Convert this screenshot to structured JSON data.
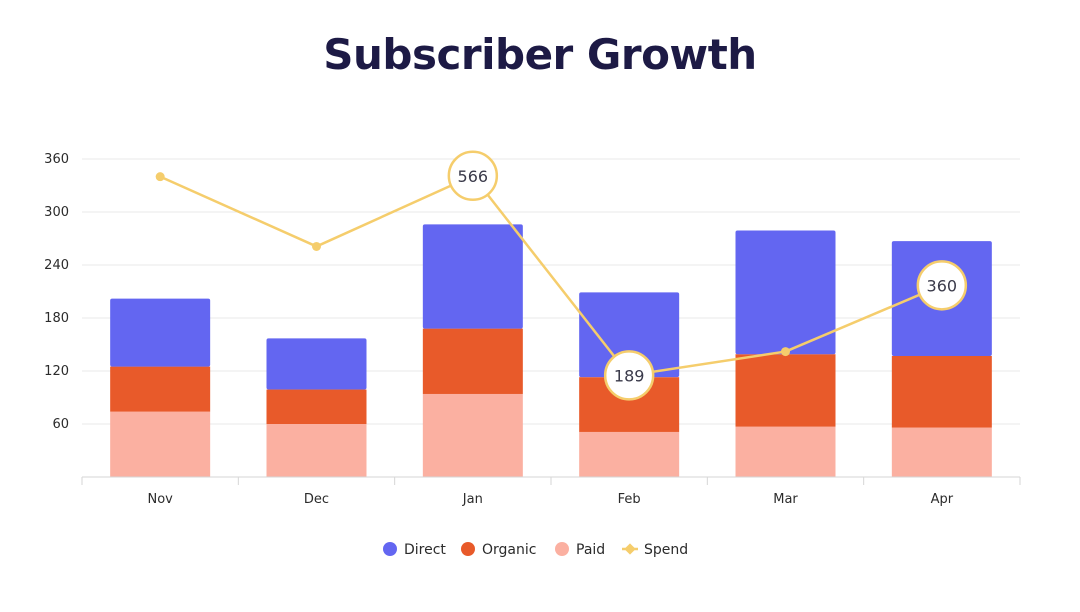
{
  "colors": {
    "title": "#1d1a45",
    "direct": "#6366f1",
    "organic": "#e85a2a",
    "paid": "#fbb0a1",
    "spend": "#f5cd6c",
    "grid": "#e8e8e8",
    "axis": "#d6d6d6"
  },
  "chart_data": {
    "type": "bar",
    "stacked": true,
    "title": "Subscriber Growth",
    "categories": [
      "Nov",
      "Dec",
      "Jan",
      "Feb",
      "Mar",
      "Apr"
    ],
    "ylim": [
      0,
      360
    ],
    "yticks": [
      "60",
      "120",
      "180",
      "240",
      "300",
      "360"
    ],
    "series": [
      {
        "name": "Paid",
        "type": "bar",
        "values": [
          74,
          60,
          94,
          51,
          57,
          56
        ]
      },
      {
        "name": "Organic",
        "type": "bar",
        "values": [
          51,
          39,
          74,
          62,
          82,
          81
        ]
      },
      {
        "name": "Direct",
        "type": "bar",
        "values": [
          77,
          58,
          118,
          96,
          140,
          130
        ]
      },
      {
        "name": "Spend",
        "type": "line",
        "values": [
          340,
          261,
          341,
          115,
          142,
          217
        ]
      }
    ],
    "annotations": [
      {
        "category": "Jan",
        "label": "566"
      },
      {
        "category": "Feb",
        "label": "189"
      },
      {
        "category": "Apr",
        "label": "360"
      }
    ],
    "legend": [
      "Direct",
      "Organic",
      "Paid",
      "Spend"
    ],
    "legend_position": "bottom"
  }
}
